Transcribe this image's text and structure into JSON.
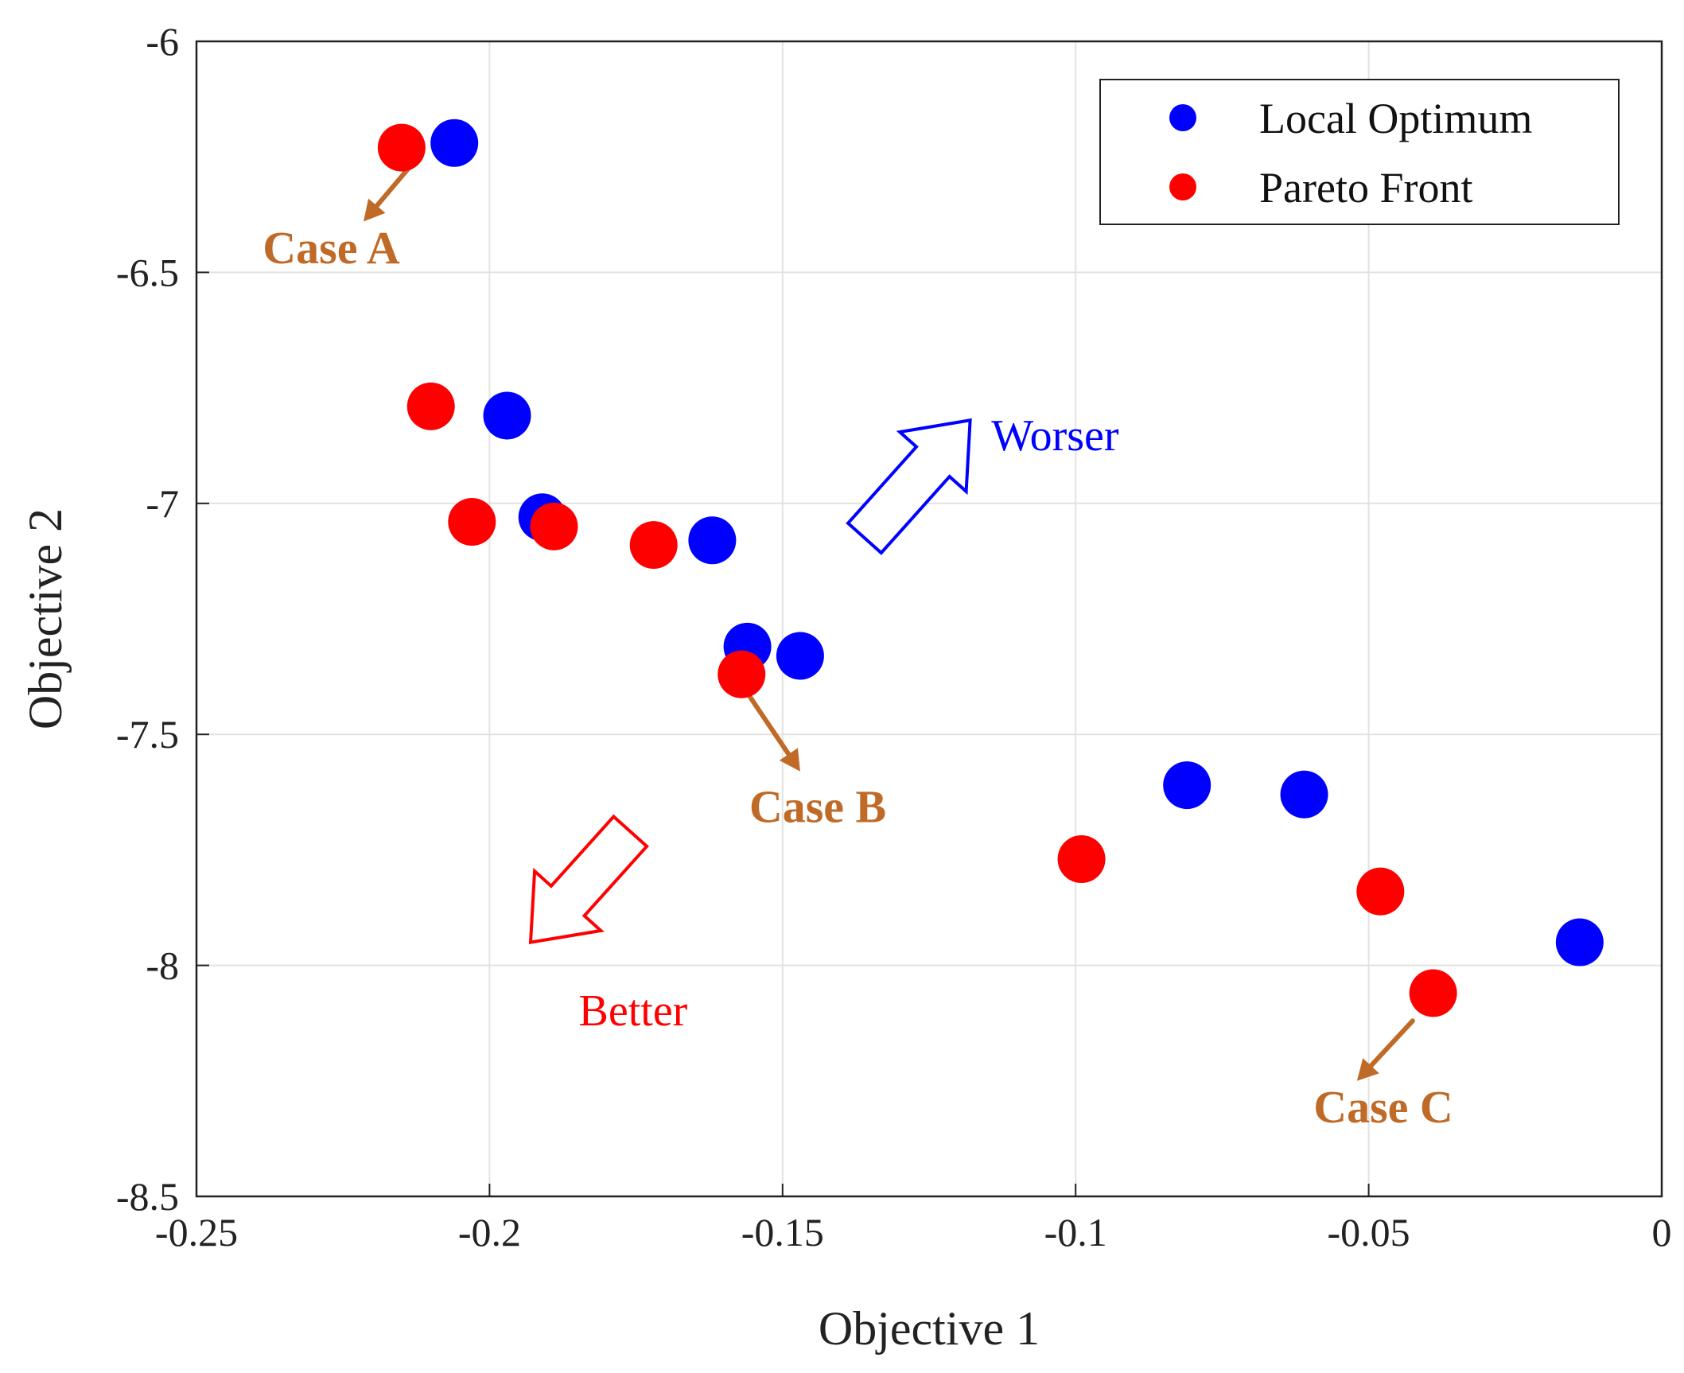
{
  "chart_data": {
    "type": "scatter",
    "title": "",
    "xlabel": "Objective 1",
    "ylabel": "Objective 2",
    "xlim": [
      -0.25,
      0
    ],
    "ylim": [
      -8.5,
      -6
    ],
    "xticks": [
      -0.25,
      -0.2,
      -0.15,
      -0.1,
      -0.05,
      0
    ],
    "yticks": [
      -8.5,
      -8,
      -7.5,
      -7,
      -6.5,
      -6
    ],
    "xtick_labels": [
      "-0.25",
      "-0.2",
      "-0.15",
      "-0.1",
      "-0.05",
      "0"
    ],
    "ytick_labels": [
      "-8.5",
      "-8",
      "-7.5",
      "-7",
      "-6.5",
      "-6"
    ],
    "grid": true,
    "legend_position": "top-right",
    "series": [
      {
        "name": "Local Optimum",
        "color": "#0000FF",
        "points": [
          {
            "x": -0.206,
            "y": -6.22
          },
          {
            "x": -0.197,
            "y": -6.81
          },
          {
            "x": -0.191,
            "y": -7.03
          },
          {
            "x": -0.162,
            "y": -7.08
          },
          {
            "x": -0.156,
            "y": -7.31
          },
          {
            "x": -0.147,
            "y": -7.33
          },
          {
            "x": -0.081,
            "y": -7.61
          },
          {
            "x": -0.061,
            "y": -7.63
          },
          {
            "x": -0.014,
            "y": -7.95
          }
        ]
      },
      {
        "name": "Pareto Front",
        "color": "#FF0000",
        "points": [
          {
            "x": -0.215,
            "y": -6.23
          },
          {
            "x": -0.21,
            "y": -6.79
          },
          {
            "x": -0.203,
            "y": -7.04
          },
          {
            "x": -0.189,
            "y": -7.05
          },
          {
            "x": -0.172,
            "y": -7.09
          },
          {
            "x": -0.157,
            "y": -7.37
          },
          {
            "x": -0.099,
            "y": -7.77
          },
          {
            "x": -0.048,
            "y": -7.84
          },
          {
            "x": -0.039,
            "y": -8.06
          }
        ]
      }
    ],
    "annotations": [
      {
        "id": "case-a",
        "text": "Case A",
        "color": "#C06A28",
        "text_x": -0.227,
        "text_y": -6.48,
        "arrow_from": [
          -0.2135,
          -6.27
        ],
        "arrow_to": [
          -0.2215,
          -6.39
        ]
      },
      {
        "id": "case-b",
        "text": "Case B",
        "color": "#C06A28",
        "text_x": -0.144,
        "text_y": -7.69,
        "arrow_from": [
          -0.1555,
          -7.42
        ],
        "arrow_to": [
          -0.147,
          -7.58
        ]
      },
      {
        "id": "case-c",
        "text": "Case C",
        "color": "#C06A28",
        "text_x": -0.0475,
        "text_y": -8.34,
        "arrow_from": [
          -0.0425,
          -8.12
        ],
        "arrow_to": [
          -0.052,
          -8.25
        ]
      },
      {
        "id": "worser",
        "text": "Worser",
        "color": "#0000FF",
        "text_x": -0.1035,
        "text_y": -6.885
      },
      {
        "id": "better",
        "text": "Better",
        "color": "#FF0000",
        "text_x": -0.1755,
        "text_y": -8.13
      }
    ],
    "direction_arrows": [
      {
        "id": "worser-arrow",
        "color": "#0000FF",
        "from": [
          -0.136,
          -7.075
        ],
        "to": [
          -0.118,
          -6.82
        ]
      },
      {
        "id": "better-arrow",
        "color": "#FF0000",
        "from": [
          -0.176,
          -7.71
        ],
        "to": [
          -0.193,
          -7.95
        ]
      }
    ]
  }
}
